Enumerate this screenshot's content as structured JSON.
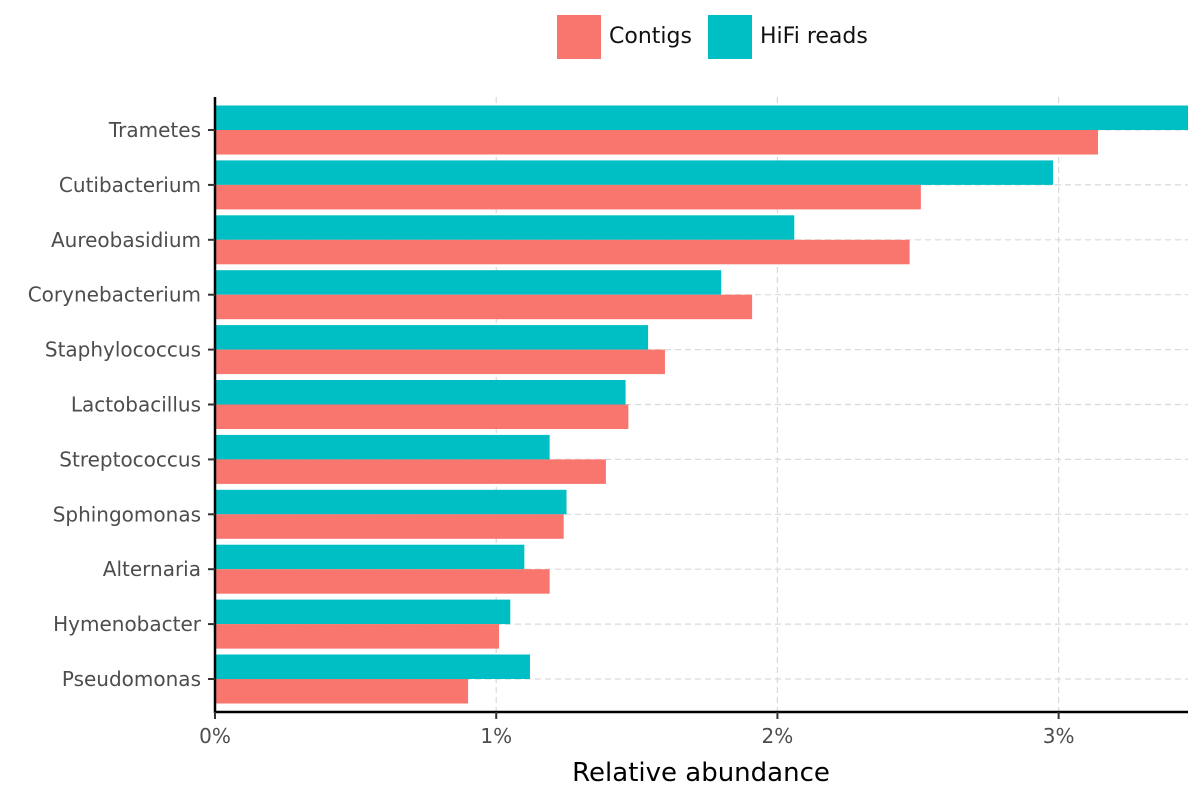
{
  "chart_data": {
    "type": "bar",
    "orientation": "horizontal",
    "title": "",
    "xlabel": "Relative abundance",
    "ylabel": "",
    "xlim": [
      0,
      3.46
    ],
    "x_unit": "%",
    "xticks": [
      0,
      1,
      2,
      3
    ],
    "xtick_labels": [
      "0%",
      "1%",
      "2%",
      "3%"
    ],
    "grid": "dashed, both axes",
    "legend_position": "top-center",
    "categories": [
      "Trametes",
      "Cutibacterium",
      "Aureobasidium",
      "Corynebacterium",
      "Staphylococcus",
      "Lactobacillus",
      "Streptococcus",
      "Sphingomonas",
      "Alternaria",
      "Hymenobacter",
      "Pseudomonas"
    ],
    "series": [
      {
        "name": "Contigs",
        "color": "#F8766D",
        "values": [
          3.14,
          2.51,
          2.47,
          1.91,
          1.6,
          1.47,
          1.39,
          1.24,
          1.19,
          1.01,
          0.9
        ]
      },
      {
        "name": "HiFi reads",
        "color": "#00BFC4",
        "values": [
          3.46,
          2.98,
          2.06,
          1.8,
          1.54,
          1.46,
          1.19,
          1.25,
          1.1,
          1.05,
          1.12
        ]
      }
    ]
  }
}
